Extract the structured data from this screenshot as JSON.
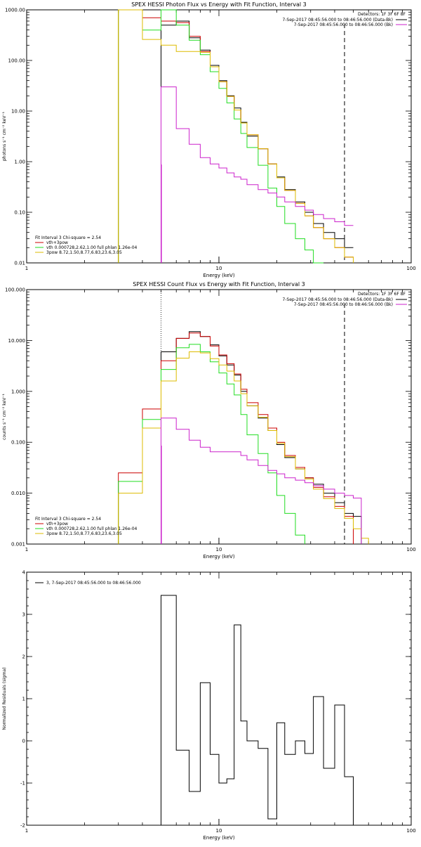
{
  "colors": {
    "black": "#000000",
    "red": "#cc0000",
    "green": "#22dd22",
    "yellow": "#ddbb00",
    "magenta": "#cc22cc"
  },
  "chart_data": [
    {
      "type": "line",
      "title": "SPEX HESSI Photon Flux vs Energy with Fit Function, Interval 3",
      "xlabel": "Energy (keV)",
      "ylabel": "photons s⁻¹ cm⁻² keV⁻¹",
      "xscale": "log",
      "yscale": "log",
      "xlim": [
        1,
        100
      ],
      "ylim": [
        0.01,
        1000
      ],
      "xticks": [
        {
          "v": 1,
          "label": "1"
        },
        {
          "v": 10,
          "label": "10"
        },
        {
          "v": 100,
          "label": "100"
        }
      ],
      "yticks": [
        {
          "v": 0.01,
          "label": "0.01"
        },
        {
          "v": 0.1,
          "label": "0.10"
        },
        {
          "v": 1,
          "label": "1.00"
        },
        {
          "v": 10,
          "label": "10.00"
        },
        {
          "v": 100,
          "label": "100.00"
        },
        {
          "v": 1000,
          "label": "1000.00"
        }
      ],
      "vlines": [
        {
          "x": 5.0,
          "style": "dotted-magenta"
        },
        {
          "x": 45.0,
          "style": "dashed"
        }
      ],
      "top_legend": {
        "detectors": "Detectors: 1F 3F 6F 8F",
        "lines": [
          {
            "text": "7-Sep-2017 08:45:56.000 to 08:46:56.000 (Data-Bk)",
            "color": "black"
          },
          {
            "text": "7-Sep-2017 08:45:56.000 to 08:46:56.000 (Bk)",
            "color": "magenta"
          }
        ]
      },
      "fit_legend": {
        "header": "Fit Interval 3   Chi-square = 2.54",
        "items": [
          {
            "text": "vth+3pow",
            "color": "red"
          },
          {
            "text": "vth 0.000728,2.62,1.00  full phlan 1.26e-04",
            "color": "green"
          },
          {
            "text": "3pow 8.72,1.50,8.77,6.83,23.6,3.05",
            "color": "yellow"
          }
        ]
      },
      "bin_edges": [
        3.0,
        4.0,
        5.0,
        6.0,
        7.0,
        8.0,
        9.0,
        10.0,
        11.0,
        12.0,
        13.0,
        14.0,
        16.0,
        18.0,
        20.0,
        22.0,
        25.0,
        28.0,
        31.0,
        35.0,
        40.0,
        45.0,
        50.0
      ],
      "series": [
        {
          "name": "Data-Bk",
          "color": "black",
          "start": 2,
          "values": [
            500,
            600,
            280,
            160,
            80,
            40,
            20,
            11.5,
            6.0,
            3.2,
            1.8,
            0.9,
            0.5,
            0.28,
            0.16,
            0.1,
            0.06,
            0.04,
            0.03,
            0.02,
            0.014
          ]
        },
        {
          "name": "vth+3pow",
          "color": "red",
          "start": 0,
          "values": [
            1000,
            700,
            600,
            560,
            300,
            150,
            75,
            38,
            19.5,
            10.5,
            5.8,
            3.4,
            1.8,
            0.9,
            0.48,
            0.27,
            0.15,
            0.085,
            0.05,
            0.03,
            0.02,
            0.013
          ]
        },
        {
          "name": "vth",
          "color": "green",
          "start": 0,
          "values": [
            1000,
            400,
            1000,
            500,
            250,
            130,
            60,
            28,
            14.5,
            7.0,
            3.6,
            1.9,
            0.85,
            0.3,
            0.13,
            0.06,
            0.03,
            0.018,
            0.01
          ]
        },
        {
          "name": "3pow",
          "color": "yellow",
          "start": 0,
          "values": [
            1000,
            260,
            200,
            150,
            150,
            145,
            75,
            38,
            19.5,
            10.5,
            5.8,
            3.4,
            1.8,
            0.9,
            0.48,
            0.27,
            0.15,
            0.085,
            0.05,
            0.03,
            0.02,
            0.013
          ]
        },
        {
          "name": "Bk",
          "color": "magenta",
          "start": 2,
          "values": [
            30,
            4.5,
            2.2,
            1.2,
            0.9,
            0.75,
            0.6,
            0.5,
            0.45,
            0.35,
            0.28,
            0.24,
            0.2,
            0.16,
            0.13,
            0.11,
            0.09,
            0.075,
            0.065,
            0.055,
            0.05
          ]
        }
      ]
    },
    {
      "type": "line",
      "title": "SPEX HESSI Count Flux vs Energy with Fit Function, Interval 3",
      "xlabel": "Energy (keV)",
      "ylabel": "counts s⁻¹ cm⁻² keV⁻¹",
      "xscale": "log",
      "yscale": "log",
      "xlim": [
        1,
        100
      ],
      "ylim": [
        0.001,
        100
      ],
      "xticks": [
        {
          "v": 1,
          "label": "1"
        },
        {
          "v": 10,
          "label": "10"
        },
        {
          "v": 100,
          "label": "100"
        }
      ],
      "yticks": [
        {
          "v": 0.001,
          "label": "0.001"
        },
        {
          "v": 0.01,
          "label": "0.010"
        },
        {
          "v": 0.1,
          "label": "0.100"
        },
        {
          "v": 1,
          "label": "1.000"
        },
        {
          "v": 10,
          "label": "10.000"
        },
        {
          "v": 100,
          "label": "100.000"
        }
      ],
      "vlines": [
        {
          "x": 5.0,
          "style": "dotted-magenta"
        },
        {
          "x": 45.0,
          "style": "dashed"
        }
      ],
      "top_legend": {
        "detectors": "Detectors: 1F 3F 6F 8F",
        "lines": [
          {
            "text": "7-Sep-2017 08:45:56.000 to 08:46:56.000 (Data-Bk)",
            "color": "black"
          },
          {
            "text": "7-Sep-2017 08:45:56.000 to 08:46:56.000 (Bk)",
            "color": "magenta"
          }
        ]
      },
      "fit_legend": {
        "header": "Fit Interval 3   Chi-square = 2.54",
        "items": [
          {
            "text": "vth+3pow",
            "color": "red"
          },
          {
            "text": "vth 0.000728,2.62,1.00  full phlan 1.26e-04",
            "color": "green"
          },
          {
            "text": "3pow 8.72,1.50,8.77,6.83,23.6,3.05",
            "color": "yellow"
          }
        ]
      },
      "bin_edges": [
        3.0,
        4.0,
        5.0,
        6.0,
        7.0,
        8.0,
        9.0,
        10.0,
        11.0,
        12.0,
        13.0,
        14.0,
        16.0,
        18.0,
        20.0,
        22.0,
        25.0,
        28.0,
        31.0,
        35.0,
        40.0,
        45.0,
        50.0,
        55.0,
        60.0
      ],
      "series": [
        {
          "name": "Data-Bk",
          "color": "black",
          "start": 2,
          "values": [
            6.0,
            11.0,
            15.0,
            12.0,
            8.2,
            5.0,
            3.3,
            2.1,
            1.0,
            0.52,
            0.3,
            0.17,
            0.09,
            0.05,
            0.03,
            0.02,
            0.015,
            0.01,
            0.0065,
            0.004,
            0.0035
          ]
        },
        {
          "name": "vth+3pow",
          "color": "red",
          "start": 0,
          "values": [
            0.025,
            0.45,
            4.0,
            11.0,
            14.0,
            12.0,
            7.8,
            5.2,
            3.5,
            2.2,
            1.1,
            0.6,
            0.35,
            0.19,
            0.1,
            0.055,
            0.032,
            0.02,
            0.013,
            0.0085,
            0.0055,
            0.0035
          ]
        },
        {
          "name": "vth",
          "color": "green",
          "start": 0,
          "values": [
            0.017,
            0.28,
            2.7,
            7.2,
            8.4,
            6.0,
            3.8,
            2.3,
            1.4,
            0.85,
            0.35,
            0.14,
            0.06,
            0.025,
            0.009,
            0.004,
            0.0015
          ]
        },
        {
          "name": "3pow",
          "color": "yellow",
          "start": 0,
          "values": [
            0.01,
            0.19,
            1.6,
            4.5,
            6.0,
            5.7,
            4.4,
            3.3,
            2.5,
            1.6,
            0.9,
            0.52,
            0.31,
            0.17,
            0.095,
            0.052,
            0.03,
            0.019,
            0.012,
            0.0078,
            0.005,
            0.0032,
            0.002,
            0.0013
          ]
        },
        {
          "name": "Bk",
          "color": "magenta",
          "start": 2,
          "values": [
            0.3,
            0.18,
            0.11,
            0.08,
            0.065,
            0.065,
            0.065,
            0.065,
            0.055,
            0.045,
            0.035,
            0.028,
            0.024,
            0.02,
            0.018,
            0.016,
            0.014,
            0.012,
            0.01,
            0.009,
            0.008
          ]
        }
      ]
    },
    {
      "type": "line",
      "title": "",
      "xlabel": "Energy (keV)",
      "ylabel": "Normalized Residuals (sigma)",
      "xscale": "log",
      "yscale": "linear",
      "xlim": [
        1,
        100
      ],
      "ylim": [
        -2,
        4
      ],
      "xticks": [
        {
          "v": 1,
          "label": "1"
        },
        {
          "v": 10,
          "label": "10"
        },
        {
          "v": 100,
          "label": "100"
        }
      ],
      "yticks": [
        {
          "v": -2,
          "label": "-2"
        },
        {
          "v": -1,
          "label": "-1"
        },
        {
          "v": 0,
          "label": "0"
        },
        {
          "v": 1,
          "label": "1"
        },
        {
          "v": 2,
          "label": "2"
        },
        {
          "v": 3,
          "label": "3"
        },
        {
          "v": 4,
          "label": "4"
        }
      ],
      "legend": [
        {
          "text": "3,  7-Sep-2017 08:45:56.000 to 08:46:56.000",
          "color": "black"
        }
      ],
      "bin_edges": [
        5.0,
        6.0,
        7.0,
        8.0,
        9.0,
        10.0,
        11.0,
        12.0,
        13.0,
        14.0,
        16.0,
        18.0,
        20.0,
        22.0,
        25.0,
        28.0,
        31.0,
        35.0,
        40.0,
        45.0,
        50.0
      ],
      "series": [
        {
          "name": "residuals",
          "color": "black",
          "start": 0,
          "values": [
            3.45,
            -0.22,
            -1.2,
            1.38,
            -0.32,
            -1.0,
            -0.9,
            2.75,
            0.47,
            0.0,
            -0.18,
            -1.85,
            0.43,
            -0.32,
            0.0,
            -0.3,
            1.05,
            -0.65,
            0.85,
            -0.85
          ]
        }
      ]
    }
  ]
}
